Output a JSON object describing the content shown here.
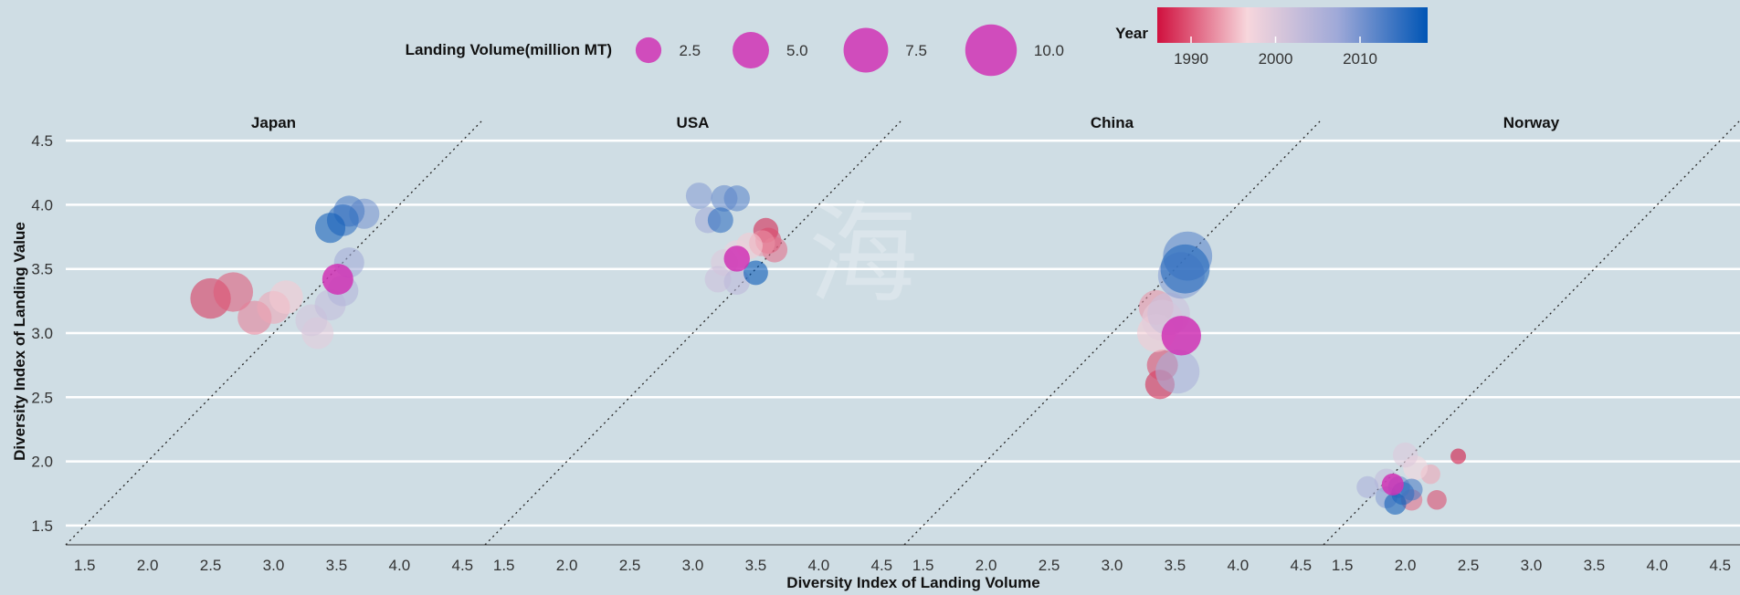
{
  "chart_data": {
    "type": "scatter",
    "xlabel": "Diversity Index of Landing Volume",
    "ylabel": "Diversity Index of Landing Value",
    "xlim": [
      1.35,
      4.65
    ],
    "ylim": [
      1.35,
      4.65
    ],
    "x_ticks": [
      "1.5",
      "2.0",
      "2.5",
      "3.0",
      "3.5",
      "4.0",
      "4.5"
    ],
    "y_ticks": [
      "1.5",
      "2.0",
      "2.5",
      "3.0",
      "3.5",
      "4.0",
      "4.5"
    ],
    "grid": "horizontal",
    "reference_line": "y = x (dotted)",
    "size_legend": {
      "title": "Landing Volume(million MT)",
      "entries": [
        {
          "label": "2.5",
          "value": 2.5
        },
        {
          "label": "5.0",
          "value": 5.0
        },
        {
          "label": "7.5",
          "value": 7.5
        },
        {
          "label": "10.0",
          "value": 10.0
        }
      ]
    },
    "color_legend": {
      "title": "Year",
      "range": [
        1986,
        2018
      ],
      "tick_labels": [
        "1990",
        "2000",
        "2010"
      ],
      "colors": [
        "#d0103e",
        "#f7d6dc",
        "#9fa9d8",
        "#0055b5"
      ]
    },
    "highlight_color": "#d033b5",
    "watermark": "海",
    "panels": [
      {
        "name": "Japan",
        "points": [
          {
            "x": 2.5,
            "y": 3.27,
            "size": 6.8,
            "year": 1988
          },
          {
            "x": 2.68,
            "y": 3.32,
            "size": 6.5,
            "year": 1990
          },
          {
            "x": 2.85,
            "y": 3.12,
            "size": 4.8,
            "year": 1992
          },
          {
            "x": 3.0,
            "y": 3.2,
            "size": 4.5,
            "year": 1994
          },
          {
            "x": 3.1,
            "y": 3.28,
            "size": 4.7,
            "year": 1996
          },
          {
            "x": 3.35,
            "y": 3.0,
            "size": 4.2,
            "year": 1999
          },
          {
            "x": 3.3,
            "y": 3.1,
            "size": 4.2,
            "year": 2001
          },
          {
            "x": 3.45,
            "y": 3.22,
            "size": 4.0,
            "year": 2003
          },
          {
            "x": 3.55,
            "y": 3.33,
            "size": 4.0,
            "year": 2005
          },
          {
            "x": 3.6,
            "y": 3.55,
            "size": 3.8,
            "year": 2007
          },
          {
            "x": 3.72,
            "y": 3.93,
            "size": 3.8,
            "year": 2010
          },
          {
            "x": 3.6,
            "y": 3.95,
            "size": 4.0,
            "year": 2013
          },
          {
            "x": 3.55,
            "y": 3.88,
            "size": 4.2,
            "year": 2015
          },
          {
            "x": 3.45,
            "y": 3.82,
            "size": 3.8,
            "year": 2017
          },
          {
            "x": 3.51,
            "y": 3.42,
            "size": 4.0,
            "year": 2004,
            "highlight": true
          }
        ]
      },
      {
        "name": "USA",
        "points": [
          {
            "x": 3.58,
            "y": 3.8,
            "size": 2.6,
            "year": 1987
          },
          {
            "x": 3.6,
            "y": 3.72,
            "size": 2.8,
            "year": 1989
          },
          {
            "x": 3.65,
            "y": 3.65,
            "size": 2.7,
            "year": 1991
          },
          {
            "x": 3.55,
            "y": 3.7,
            "size": 2.8,
            "year": 1993
          },
          {
            "x": 3.45,
            "y": 3.68,
            "size": 2.9,
            "year": 1996
          },
          {
            "x": 3.35,
            "y": 3.62,
            "size": 3.0,
            "year": 1998
          },
          {
            "x": 3.25,
            "y": 3.55,
            "size": 3.0,
            "year": 2000
          },
          {
            "x": 3.2,
            "y": 3.42,
            "size": 2.9,
            "year": 2002
          },
          {
            "x": 3.35,
            "y": 3.4,
            "size": 2.8,
            "year": 2004
          },
          {
            "x": 3.12,
            "y": 3.88,
            "size": 2.8,
            "year": 2007
          },
          {
            "x": 3.05,
            "y": 4.07,
            "size": 2.9,
            "year": 2009
          },
          {
            "x": 3.25,
            "y": 4.05,
            "size": 2.9,
            "year": 2011
          },
          {
            "x": 3.35,
            "y": 4.05,
            "size": 2.8,
            "year": 2012
          },
          {
            "x": 3.22,
            "y": 3.88,
            "size": 2.7,
            "year": 2015
          },
          {
            "x": 3.5,
            "y": 3.47,
            "size": 2.5,
            "year": 2018
          },
          {
            "x": 3.35,
            "y": 3.58,
            "size": 2.8,
            "year": 2005,
            "highlight": true
          }
        ]
      },
      {
        "name": "China",
        "points": [
          {
            "x": 3.38,
            "y": 2.6,
            "size": 3.6,
            "year": 1987
          },
          {
            "x": 3.4,
            "y": 2.75,
            "size": 4.0,
            "year": 1989
          },
          {
            "x": 3.35,
            "y": 3.2,
            "size": 5.0,
            "year": 1993
          },
          {
            "x": 3.35,
            "y": 3.0,
            "size": 6.0,
            "year": 1996
          },
          {
            "x": 3.4,
            "y": 3.1,
            "size": 7.0,
            "year": 1999
          },
          {
            "x": 3.45,
            "y": 3.15,
            "size": 7.5,
            "year": 2002
          },
          {
            "x": 3.52,
            "y": 2.7,
            "size": 8.0,
            "year": 2006
          },
          {
            "x": 3.55,
            "y": 3.45,
            "size": 9.0,
            "year": 2009
          },
          {
            "x": 3.6,
            "y": 3.6,
            "size": 10.0,
            "year": 2012
          },
          {
            "x": 3.58,
            "y": 3.5,
            "size": 10.0,
            "year": 2016
          },
          {
            "x": 3.55,
            "y": 2.98,
            "size": 6.5,
            "year": 2004,
            "highlight": true
          }
        ]
      },
      {
        "name": "Norway",
        "points": [
          {
            "x": 2.42,
            "y": 2.04,
            "size": 1.0,
            "year": 1986
          },
          {
            "x": 2.25,
            "y": 1.7,
            "size": 1.6,
            "year": 1989
          },
          {
            "x": 2.05,
            "y": 1.7,
            "size": 1.9,
            "year": 1991
          },
          {
            "x": 2.2,
            "y": 1.9,
            "size": 1.6,
            "year": 1994
          },
          {
            "x": 2.08,
            "y": 1.95,
            "size": 2.5,
            "year": 1997
          },
          {
            "x": 2.0,
            "y": 2.05,
            "size": 2.6,
            "year": 2000
          },
          {
            "x": 1.85,
            "y": 1.85,
            "size": 2.4,
            "year": 2003
          },
          {
            "x": 1.7,
            "y": 1.8,
            "size": 2.0,
            "year": 2006
          },
          {
            "x": 1.85,
            "y": 1.72,
            "size": 2.0,
            "year": 2009
          },
          {
            "x": 1.95,
            "y": 1.8,
            "size": 2.0,
            "year": 2011
          },
          {
            "x": 2.05,
            "y": 1.78,
            "size": 2.0,
            "year": 2013
          },
          {
            "x": 1.98,
            "y": 1.75,
            "size": 2.2,
            "year": 2015
          },
          {
            "x": 1.92,
            "y": 1.67,
            "size": 2.0,
            "year": 2017
          },
          {
            "x": 1.9,
            "y": 1.82,
            "size": 2.0,
            "year": 2005,
            "highlight": true
          }
        ]
      }
    ]
  }
}
